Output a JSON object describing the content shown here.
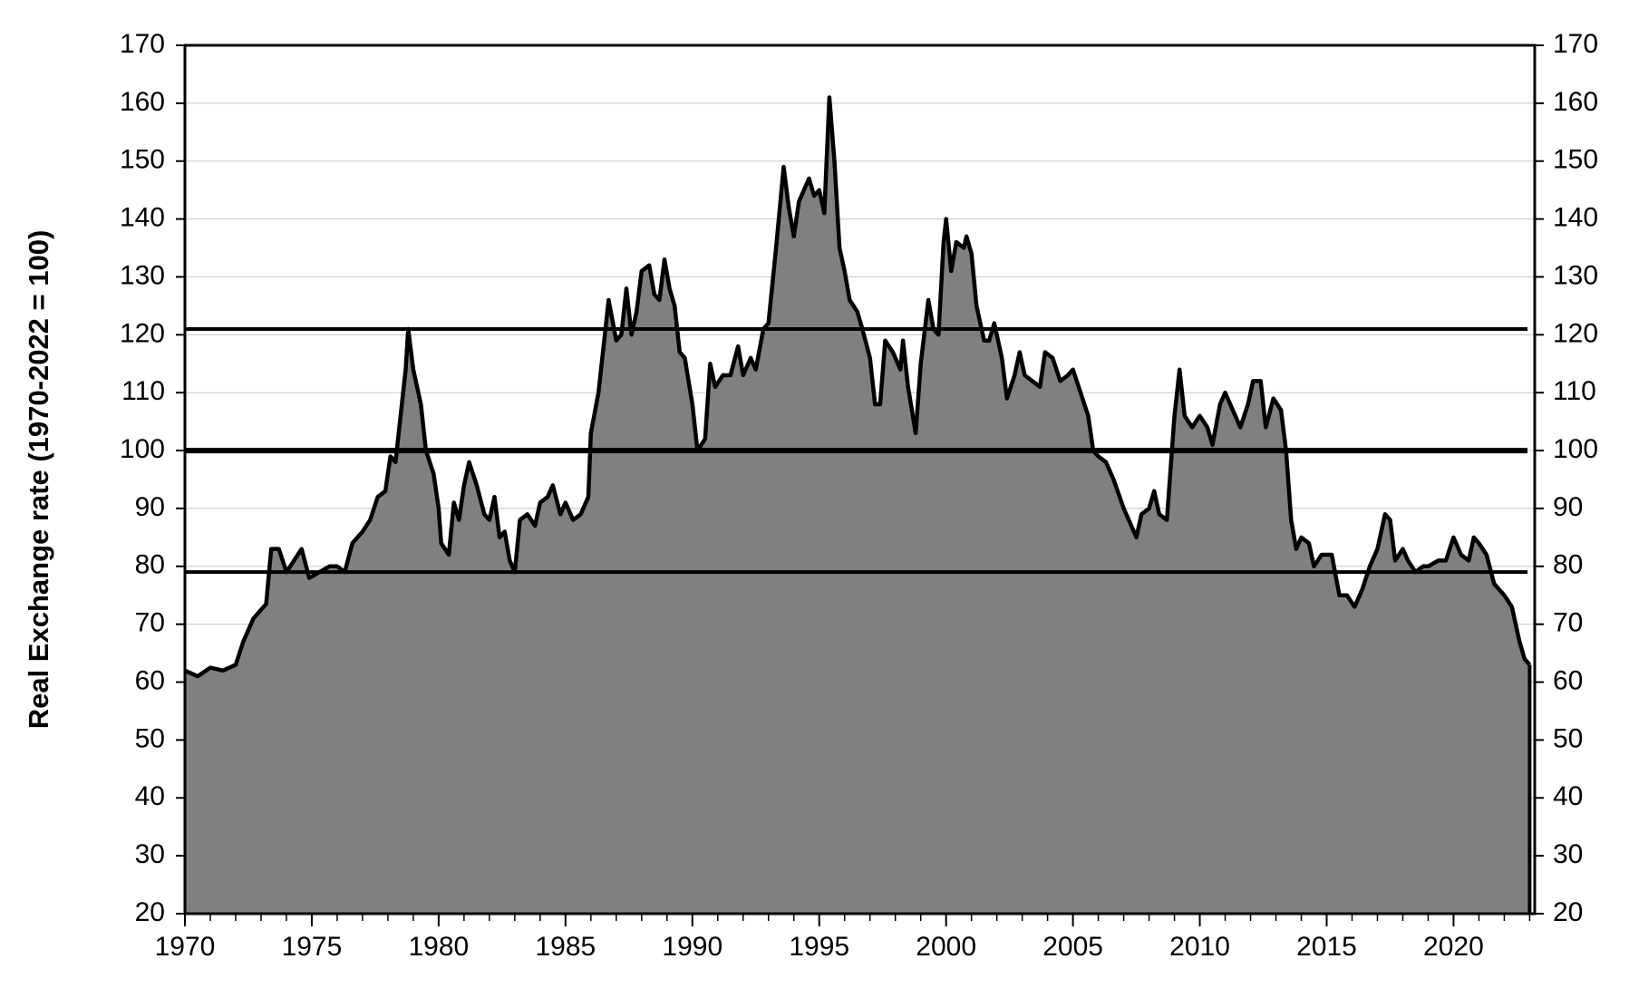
{
  "chart_data": {
    "type": "area",
    "ylabel": "Real Exchange rate (1970-2022 = 100)",
    "x": [
      1970.0,
      1970.5,
      1971.0,
      1971.5,
      1972.0,
      1972.3,
      1972.7,
      1973.0,
      1973.2,
      1973.4,
      1973.7,
      1974.0,
      1974.3,
      1974.6,
      1974.9,
      1975.3,
      1975.7,
      1976.0,
      1976.3,
      1976.6,
      1977.0,
      1977.3,
      1977.6,
      1977.9,
      1978.1,
      1978.3,
      1978.5,
      1978.7,
      1978.8,
      1979.0,
      1979.3,
      1979.5,
      1979.8,
      1980.0,
      1980.1,
      1980.4,
      1980.6,
      1980.8,
      1981.0,
      1981.2,
      1981.5,
      1981.8,
      1982.0,
      1982.2,
      1982.4,
      1982.6,
      1982.8,
      1983.0,
      1983.2,
      1983.5,
      1983.8,
      1984.0,
      1984.3,
      1984.5,
      1984.8,
      1985.0,
      1985.3,
      1985.6,
      1985.9,
      1986.0,
      1986.3,
      1986.5,
      1986.7,
      1987.0,
      1987.2,
      1987.4,
      1987.6,
      1987.8,
      1988.0,
      1988.3,
      1988.5,
      1988.7,
      1988.9,
      1989.1,
      1989.3,
      1989.5,
      1989.7,
      1990.0,
      1990.2,
      1990.5,
      1990.7,
      1990.9,
      1991.2,
      1991.5,
      1991.8,
      1992.0,
      1992.3,
      1992.5,
      1992.8,
      1993.0,
      1993.3,
      1993.6,
      1993.8,
      1994.0,
      1994.2,
      1994.4,
      1994.6,
      1994.8,
      1995.0,
      1995.2,
      1995.4,
      1995.6,
      1995.8,
      1996.0,
      1996.2,
      1996.5,
      1996.7,
      1997.0,
      1997.2,
      1997.4,
      1997.6,
      1997.9,
      1998.2,
      1998.3,
      1998.5,
      1998.8,
      1999.0,
      1999.3,
      1999.5,
      1999.7,
      1999.9,
      2000.0,
      2000.2,
      2000.4,
      2000.7,
      2000.8,
      2001.0,
      2001.2,
      2001.5,
      2001.7,
      2001.9,
      2002.2,
      2002.4,
      2002.7,
      2002.9,
      2003.1,
      2003.4,
      2003.7,
      2003.9,
      2004.2,
      2004.5,
      2004.8,
      2005.0,
      2005.3,
      2005.6,
      2005.8,
      2006.0,
      2006.3,
      2006.6,
      2007.0,
      2007.2,
      2007.5,
      2007.7,
      2008.0,
      2008.2,
      2008.4,
      2008.7,
      2009.0,
      2009.2,
      2009.4,
      2009.7,
      2010.0,
      2010.3,
      2010.5,
      2010.8,
      2011.0,
      2011.3,
      2011.6,
      2011.9,
      2012.1,
      2012.4,
      2012.6,
      2012.9,
      2013.2,
      2013.4,
      2013.6,
      2013.8,
      2014.0,
      2014.3,
      2014.5,
      2014.8,
      2015.2,
      2015.5,
      2015.8,
      2016.1,
      2016.4,
      2016.7,
      2017.0,
      2017.3,
      2017.5,
      2017.7,
      2018.0,
      2018.2,
      2018.5,
      2018.8,
      2019.0,
      2019.4,
      2019.7,
      2020.0,
      2020.3,
      2020.6,
      2020.8,
      2021.0,
      2021.3,
      2021.6,
      2022.0,
      2022.3,
      2022.6,
      2022.8,
      2023.0
    ],
    "values": [
      62,
      61,
      62.5,
      62,
      63,
      67,
      71,
      72.5,
      73.5,
      83,
      83,
      79,
      81,
      83,
      78,
      79,
      80,
      80,
      79,
      84,
      86,
      88,
      92,
      93,
      99,
      98,
      106,
      114,
      121,
      114,
      108,
      100,
      96,
      90,
      84,
      82,
      91,
      88,
      94,
      98,
      94,
      89,
      88,
      92,
      85,
      86,
      81,
      79,
      88,
      89,
      87,
      91,
      92,
      94,
      89,
      91,
      88,
      89,
      92,
      103,
      110,
      118,
      126,
      119,
      120,
      128,
      120,
      124,
      131,
      132,
      127,
      126,
      133,
      128,
      125,
      117,
      116,
      108,
      100,
      102,
      115,
      111,
      113,
      113,
      118,
      113,
      116,
      114,
      121,
      122,
      135,
      149,
      142,
      137,
      143,
      145,
      147,
      144,
      145,
      141,
      161,
      150,
      135,
      131,
      126,
      124,
      121,
      116,
      108,
      108,
      119,
      117,
      114,
      119,
      111,
      103,
      115,
      126,
      121,
      120,
      136,
      140,
      131,
      136,
      135,
      137,
      134,
      125,
      119,
      119,
      122,
      116,
      109,
      113,
      117,
      113,
      112,
      111,
      117,
      116,
      112,
      113,
      114,
      110,
      106,
      100,
      99,
      98,
      95,
      90,
      88,
      85,
      89,
      90,
      93,
      89,
      88,
      106,
      114,
      106,
      104,
      106,
      104,
      101,
      108,
      110,
      107,
      104,
      108,
      112,
      112,
      104,
      109,
      107,
      100,
      88,
      83,
      85,
      84,
      80,
      82,
      82,
      75,
      75,
      73,
      76,
      80,
      83,
      89,
      88,
      81,
      83,
      81,
      79,
      80,
      80,
      81,
      81,
      85,
      82,
      81,
      85,
      84,
      82,
      77,
      75,
      73,
      67,
      64,
      63
    ],
    "color": "#808080",
    "reference_lines": [
      121,
      100,
      79
    ],
    "xlim": [
      1970,
      2023.2
    ],
    "xticks": [
      1970,
      1975,
      1980,
      1985,
      1990,
      1995,
      2000,
      2005,
      2010,
      2015,
      2020
    ],
    "ylim": [
      20,
      170
    ],
    "yticks": [
      20,
      30,
      40,
      50,
      60,
      70,
      80,
      90,
      100,
      110,
      120,
      130,
      140,
      150,
      160,
      170
    ],
    "y2lim": [
      20,
      170
    ],
    "y2ticks": [
      20,
      30,
      40,
      50,
      60,
      70,
      80,
      90,
      100,
      110,
      120,
      130,
      140,
      150,
      160,
      170
    ],
    "grid": true
  }
}
